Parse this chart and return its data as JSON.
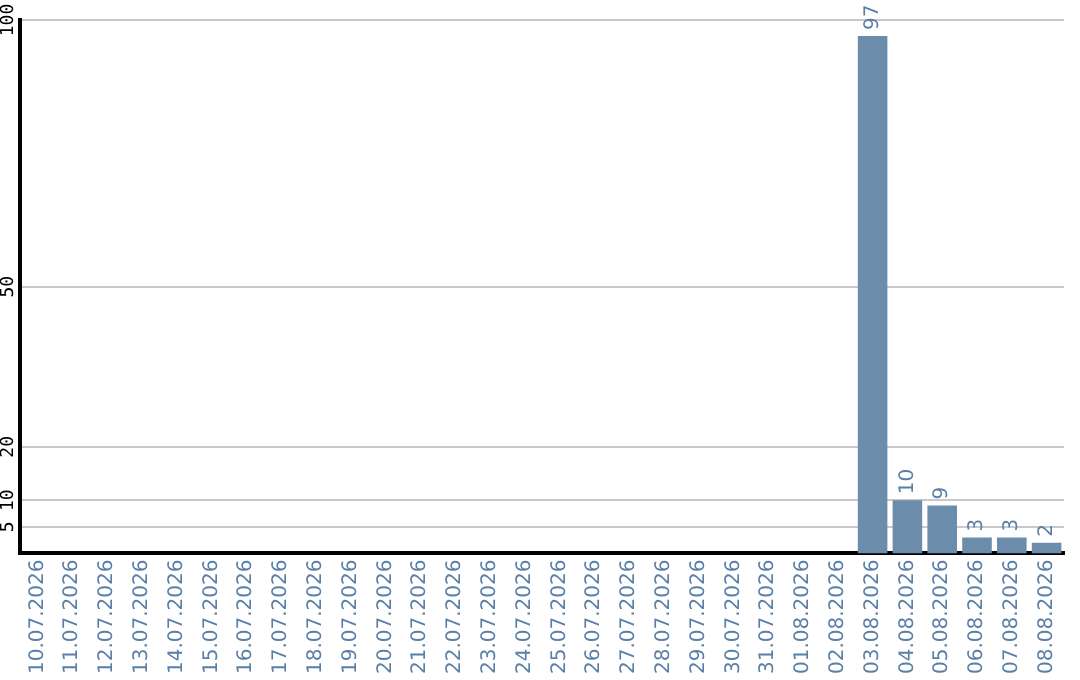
{
  "chart_data": {
    "type": "bar",
    "categories": [
      "10.07.2026",
      "11.07.2026",
      "12.07.2026",
      "13.07.2026",
      "14.07.2026",
      "15.07.2026",
      "16.07.2026",
      "17.07.2026",
      "18.07.2026",
      "19.07.2026",
      "20.07.2026",
      "21.07.2026",
      "22.07.2026",
      "23.07.2026",
      "24.07.2026",
      "25.07.2026",
      "26.07.2026",
      "27.07.2026",
      "28.07.2026",
      "29.07.2026",
      "30.07.2026",
      "31.07.2026",
      "01.08.2026",
      "02.08.2026",
      "03.08.2026",
      "04.08.2026",
      "05.08.2026",
      "06.08.2026",
      "07.08.2026",
      "08.08.2026"
    ],
    "values": [
      0,
      0,
      0,
      0,
      0,
      0,
      0,
      0,
      0,
      0,
      0,
      0,
      0,
      0,
      0,
      0,
      0,
      0,
      0,
      0,
      0,
      0,
      0,
      0,
      97,
      10,
      9,
      3,
      3,
      2
    ],
    "value_labels": [
      null,
      null,
      null,
      null,
      null,
      null,
      null,
      null,
      null,
      null,
      null,
      null,
      null,
      null,
      null,
      null,
      null,
      null,
      null,
      null,
      null,
      null,
      null,
      null,
      "97",
      "10",
      "9",
      "3",
      "3",
      "2"
    ],
    "color": "#6b8cab",
    "ylim": [
      0,
      100
    ],
    "yticks": [
      5,
      10,
      20,
      50,
      100
    ],
    "grid": "y",
    "legend": false
  }
}
